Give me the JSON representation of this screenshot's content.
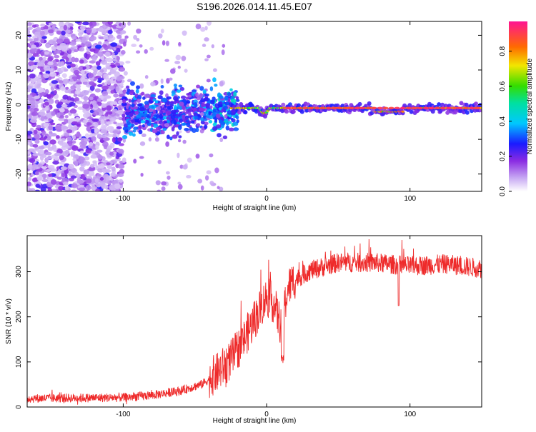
{
  "title": "S196.2026.014.11.45.E07",
  "chart_data": [
    {
      "type": "heatmap",
      "xlabel": "Height of straight line (km)",
      "ylabel": "Frequency (Hz)",
      "xlim": [
        -167,
        150
      ],
      "ylim": [
        -25,
        24
      ],
      "xticks": [
        -100,
        0,
        100
      ],
      "yticks": [
        -20,
        -10,
        0,
        10,
        20
      ],
      "description_of_data": [
        {
          "x_range": [
            -167,
            -100
          ],
          "pattern": "scattered broadband noise, amplitude ~0.1-0.25"
        },
        {
          "x_range": [
            -100,
            -20
          ],
          "pattern": "energy concentrating near 0 to -6 Hz, amplitude ~0.2-0.5"
        },
        {
          "x_range": [
            -20,
            150
          ],
          "pattern": "narrow line at ~-1 Hz, amplitude ~0.8-1.0"
        }
      ],
      "colorbar": {
        "label": "Normalized spectral amplitude",
        "range": [
          0.0,
          0.97
        ],
        "ticks": [
          0.0,
          0.2,
          0.4,
          0.6,
          0.8
        ]
      }
    },
    {
      "type": "line",
      "xlabel": "Height of straight line (km)",
      "ylabel": "SNR (10 * v/v)",
      "xlim": [
        -167,
        150
      ],
      "ylim": [
        0,
        380
      ],
      "xticks": [
        -100,
        0,
        100
      ],
      "yticks": [
        0,
        100,
        200,
        300
      ],
      "series": [
        {
          "name": "SNR",
          "color": "#ee2a2a",
          "envelope_x": [
            -167,
            -100,
            -80,
            -60,
            -45,
            -35,
            -25,
            -15,
            -5,
            0,
            5,
            10,
            15,
            20,
            30,
            50,
            75,
            100,
            125,
            150
          ],
          "envelope_y": [
            18,
            20,
            25,
            35,
            50,
            70,
            100,
            150,
            210,
            240,
            225,
            175,
            260,
            280,
            300,
            318,
            318,
            310,
            315,
            305
          ]
        }
      ]
    }
  ]
}
